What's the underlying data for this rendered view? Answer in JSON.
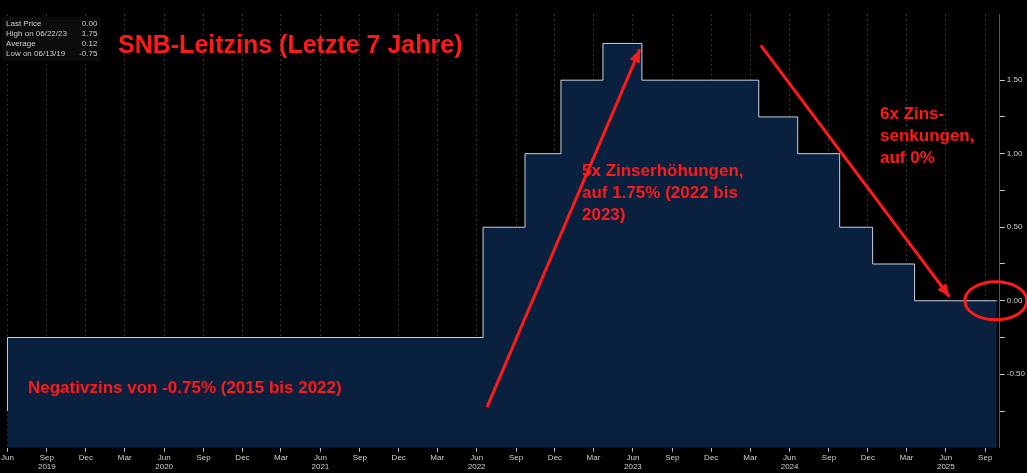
{
  "chart_data": {
    "type": "step",
    "title": "SNB-Leitzins (Letzte 7 Jahre)",
    "x": [
      "2019-06-01",
      "2022-06-16",
      "2022-09-22",
      "2022-12-15",
      "2023-03-23",
      "2023-06-22",
      "2024-03-21",
      "2024-06-20",
      "2024-09-26",
      "2024-12-12",
      "2025-03-20",
      "2025-06-19",
      "2025-09-28"
    ],
    "series": [
      {
        "color": "#c9d3df",
        "values": [
          -0.75,
          -0.25,
          0.5,
          1.0,
          1.5,
          1.75,
          1.5,
          1.25,
          1.0,
          0.5,
          0.25,
          0.0,
          0.0
        ]
      }
    ],
    "xlim": [
      "2019-05-29",
      "2025-10-05"
    ],
    "xticks": [
      {
        "value": "2019-06-01",
        "label": "Jun"
      },
      {
        "value": "2019-09-01",
        "label": "Sep\n2019"
      },
      {
        "value": "2019-12-01",
        "label": "Dec"
      },
      {
        "value": "2020-03-01",
        "label": "Mar"
      },
      {
        "value": "2020-06-01",
        "label": "Jun\n2020"
      },
      {
        "value": "2020-09-01",
        "label": "Sep"
      },
      {
        "value": "2020-12-01",
        "label": "Dec"
      },
      {
        "value": "2021-03-01",
        "label": "Mar"
      },
      {
        "value": "2021-06-01",
        "label": "Jun\n2021"
      },
      {
        "value": "2021-09-01",
        "label": "Sep"
      },
      {
        "value": "2021-12-01",
        "label": "Dec"
      },
      {
        "value": "2022-03-01",
        "label": "Mar"
      },
      {
        "value": "2022-06-01",
        "label": "Jun\n2022"
      },
      {
        "value": "2022-09-01",
        "label": "Sep"
      },
      {
        "value": "2022-12-01",
        "label": "Dec"
      },
      {
        "value": "2023-03-01",
        "label": "Mar"
      },
      {
        "value": "2023-06-01",
        "label": "Jun\n2023"
      },
      {
        "value": "2023-09-01",
        "label": "Sep"
      },
      {
        "value": "2023-12-01",
        "label": "Dec"
      },
      {
        "value": "2024-03-01",
        "label": "Mar"
      },
      {
        "value": "2024-06-01",
        "label": "Jun\n2024"
      },
      {
        "value": "2024-09-01",
        "label": "Sep"
      },
      {
        "value": "2024-12-01",
        "label": "Dec"
      },
      {
        "value": "2025-03-01",
        "label": "Mar"
      },
      {
        "value": "2025-06-01",
        "label": "Jun\n2025"
      },
      {
        "value": "2025-09-01",
        "label": "Sep"
      }
    ],
    "ylim": [
      -1.0,
      1.95
    ],
    "yticks": [
      {
        "value": -0.75,
        "label": null
      },
      {
        "value": -0.5,
        "label": "-0.50"
      },
      {
        "value": -0.25,
        "label": null
      },
      {
        "value": 0,
        "label": "0.00"
      },
      {
        "value": 0.25,
        "label": null
      },
      {
        "value": 0.5,
        "label": "0.50"
      },
      {
        "value": 0.75,
        "label": null
      },
      {
        "value": 1.0,
        "label": "1.00"
      },
      {
        "value": 1.25,
        "label": null
      },
      {
        "value": 1.5,
        "label": "1.50"
      }
    ],
    "grid": "x",
    "legend": false,
    "annotations": [
      "Last Price\t0.00",
      "High on 06/22/23\t1.75",
      "Average\t0.12",
      "Low on 06/13/19\t-0.75",
      "Negativzins von -0.75% (2015 bis 2022)",
      "5x Zinserhöhungen,\nauf 1.75% (2022 bis\n2023)",
      "6x Zins-\nsenkungen,\nauf 0%"
    ]
  }
}
